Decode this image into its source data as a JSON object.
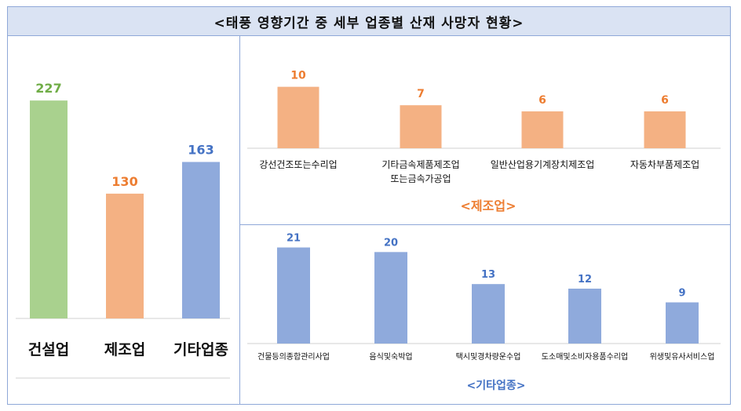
{
  "title": "<태풍 영향기간 중 세부 업종별 산재 사망자 현황>",
  "chart_data": [
    {
      "type": "bar",
      "categories": [
        "건설업",
        "제조업",
        "기타업종"
      ],
      "values": [
        227,
        130,
        163
      ],
      "colors": [
        "#a9d18e",
        "#f4b183",
        "#8faadc"
      ],
      "label_colors": [
        "#70ad47",
        "#ed7d31",
        "#4472c4"
      ],
      "ylim": [
        0,
        250
      ]
    },
    {
      "type": "bar",
      "subtitle": "<제조업>",
      "categories": [
        "강선건조또는수리업",
        "기타금속제품제조업\n또는금속가공업",
        "일반산업용기계장치제조업",
        "자동차부품제조업"
      ],
      "values": [
        10,
        7,
        6,
        6
      ],
      "color": "#f4b183",
      "label_color": "#ed7d31",
      "ylim": [
        0,
        12
      ]
    },
    {
      "type": "bar",
      "subtitle": "<기타업종>",
      "categories": [
        "건물등의종합관리사업",
        "음식및숙박업",
        "택시및경차량운수업",
        "도소매및소비자용품수리업",
        "위생및유사서비스업"
      ],
      "values": [
        21,
        20,
        13,
        12,
        9
      ],
      "color": "#8faadc",
      "label_color": "#4472c4",
      "ylim": [
        0,
        24
      ]
    }
  ]
}
